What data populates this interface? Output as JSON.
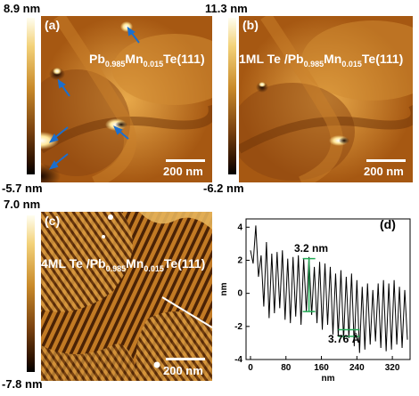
{
  "panel_a": {
    "label": "(a)",
    "composition": {
      "prefix": "Pb",
      "sub1": "0.985",
      "mid": "Mn",
      "sub2": "0.015",
      "suffix": "Te(111)"
    },
    "colorbar_max": "8.9 nm",
    "colorbar_min": "-5.7 nm",
    "scalebar": "200 nm"
  },
  "panel_b": {
    "label": "(b)",
    "composition": {
      "prefix": "1ML Te /Pb",
      "sub1": "0.985",
      "mid": "Mn",
      "sub2": "0.015",
      "suffix": "Te(111)"
    },
    "colorbar_max": "11.3 nm",
    "colorbar_min": "-6.2 nm",
    "scalebar": "200 nm"
  },
  "panel_c": {
    "label": "(c)",
    "composition": {
      "prefix": "4ML Te /Pb",
      "sub1": "0.985",
      "mid": "Mn",
      "sub2": "0.015",
      "suffix": "Te(111)"
    },
    "colorbar_max": "7.0 nm",
    "colorbar_min": "-7.8 nm",
    "scalebar": "200 nm"
  },
  "panel_d": {
    "label": "(d)",
    "annotation_top": "3.2 nm",
    "annotation_bottom": "3.76 Å"
  },
  "colors": {
    "profile_line": "#000000",
    "annotation": "#22aa55",
    "afm_dark": "#3a1a00",
    "afm_light": "#f0c060"
  },
  "chart_data": {
    "type": "line",
    "xlabel": "nm",
    "ylabel": "nm",
    "xlim": [
      -10,
      360
    ],
    "ylim": [
      -4,
      4.5
    ],
    "xticks": [
      0,
      80,
      160,
      240,
      320
    ],
    "yticks": [
      -4,
      -2,
      0,
      2,
      4
    ],
    "x": [
      0,
      6,
      12,
      18,
      24,
      30,
      36,
      42,
      48,
      54,
      60,
      66,
      72,
      78,
      84,
      90,
      96,
      102,
      108,
      114,
      120,
      126,
      132,
      138,
      144,
      150,
      156,
      162,
      168,
      174,
      180,
      186,
      192,
      198,
      204,
      210,
      216,
      222,
      228,
      234,
      240,
      246,
      252,
      258,
      264,
      270,
      276,
      282,
      288,
      294,
      300,
      306,
      312,
      318,
      324,
      330,
      336,
      342,
      348,
      354
    ],
    "y": [
      2.6,
      1.8,
      4.1,
      1.0,
      2.3,
      -0.8,
      3.1,
      -1.5,
      2.4,
      -1.2,
      2.5,
      -0.9,
      2.6,
      -1.6,
      2.1,
      -1.8,
      2.2,
      -1.4,
      2.3,
      -1.9,
      2.1,
      -1.1,
      2.2,
      -1.3,
      1.6,
      -1.8,
      1.9,
      -2.2,
      1.8,
      -1.9,
      1.6,
      -2.5,
      1.2,
      -2.6,
      1.4,
      -2.8,
      1.0,
      -2.7,
      1.2,
      -3.2,
      0.8,
      -3.6,
      0.4,
      -3.4,
      0.6,
      -3.1,
      0.2,
      -2.9,
      0.6,
      -3.3,
      0.8,
      -3.5,
      0.6,
      -3.4,
      0.8,
      -3.1,
      0.4,
      -3.3,
      0.2,
      -2.8
    ]
  }
}
